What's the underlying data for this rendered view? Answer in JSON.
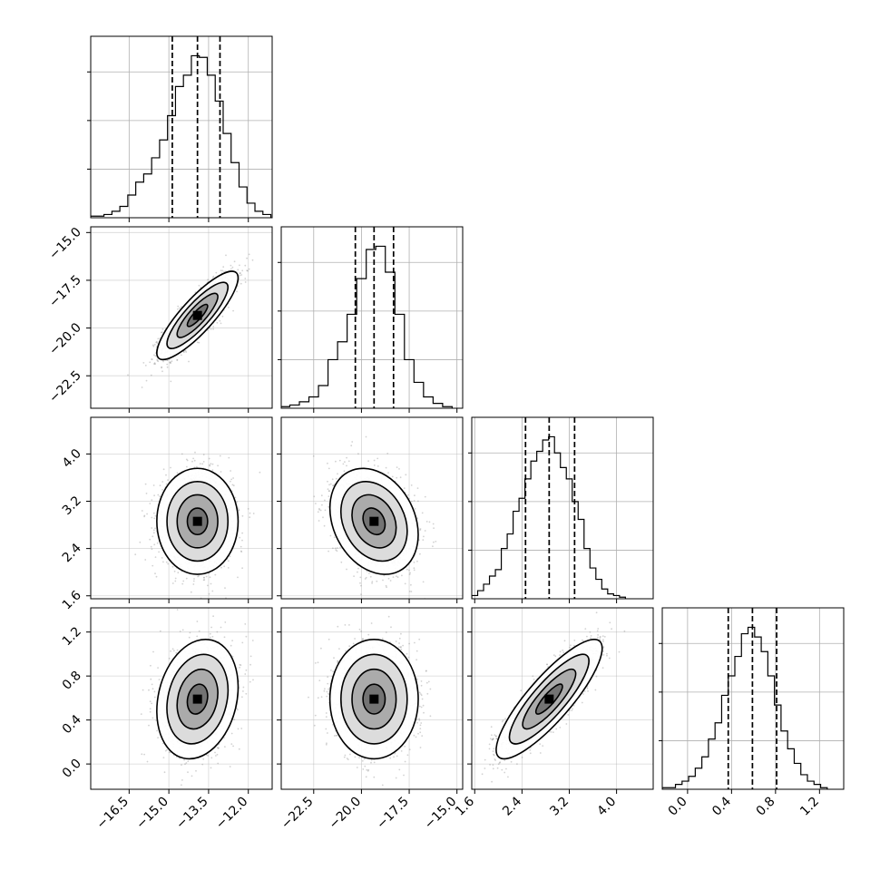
{
  "chart_data": {
    "type": "corner",
    "parameters": [
      {
        "ticks": [
          -16.5,
          -15.0,
          -13.5,
          -12.0
        ],
        "tick_labels": [
          "−16.5",
          "−15.0",
          "−13.5",
          "−12.0"
        ],
        "range": [
          -17.95,
          -11.1
        ],
        "mean": -13.92,
        "sd": 0.65,
        "quantiles": [
          -14.87,
          -13.92,
          -13.07
        ],
        "hist": [
          {
            "x": -17.9,
            "density": 0.01
          },
          {
            "x": -17.6,
            "density": 0.01
          },
          {
            "x": -17.3,
            "density": 0.02
          },
          {
            "x": -17.0,
            "density": 0.04
          },
          {
            "x": -16.7,
            "density": 0.07
          },
          {
            "x": -16.4,
            "density": 0.14
          },
          {
            "x": -16.1,
            "density": 0.22
          },
          {
            "x": -15.8,
            "density": 0.27
          },
          {
            "x": -15.5,
            "density": 0.37
          },
          {
            "x": -15.2,
            "density": 0.48
          },
          {
            "x": -14.9,
            "density": 0.63
          },
          {
            "x": -14.6,
            "density": 0.81
          },
          {
            "x": -14.3,
            "density": 0.88
          },
          {
            "x": -14.0,
            "density": 1.0
          },
          {
            "x": -13.7,
            "density": 0.99
          },
          {
            "x": -13.4,
            "density": 0.88
          },
          {
            "x": -13.1,
            "density": 0.72
          },
          {
            "x": -12.8,
            "density": 0.52
          },
          {
            "x": -12.5,
            "density": 0.34
          },
          {
            "x": -12.2,
            "density": 0.19
          },
          {
            "x": -11.9,
            "density": 0.09
          },
          {
            "x": -11.6,
            "density": 0.04
          },
          {
            "x": -11.3,
            "density": 0.02
          }
        ]
      },
      {
        "ticks": [
          -22.5,
          -20.0,
          -17.5,
          -15.0
        ],
        "tick_labels": [
          "−22.5",
          "−20.0",
          "−17.5",
          "−15.0"
        ],
        "range": [
          -24.2,
          -14.7
        ],
        "mean": -19.34,
        "sd": 0.98,
        "quantiles": [
          -20.32,
          -19.34,
          -18.32
        ],
        "hist": [
          {
            "x": -24.0,
            "density": 0.01
          },
          {
            "x": -23.5,
            "density": 0.02
          },
          {
            "x": -23.0,
            "density": 0.04
          },
          {
            "x": -22.5,
            "density": 0.07
          },
          {
            "x": -22.0,
            "density": 0.14
          },
          {
            "x": -21.5,
            "density": 0.3
          },
          {
            "x": -21.0,
            "density": 0.41
          },
          {
            "x": -20.5,
            "density": 0.58
          },
          {
            "x": -20.0,
            "density": 0.8
          },
          {
            "x": -19.5,
            "density": 0.98
          },
          {
            "x": -19.0,
            "density": 1.0
          },
          {
            "x": -18.5,
            "density": 0.84
          },
          {
            "x": -18.0,
            "density": 0.58
          },
          {
            "x": -17.5,
            "density": 0.3
          },
          {
            "x": -17.0,
            "density": 0.16
          },
          {
            "x": -16.5,
            "density": 0.07
          },
          {
            "x": -16.0,
            "density": 0.03
          },
          {
            "x": -15.5,
            "density": 0.01
          }
        ]
      },
      {
        "ticks": [
          1.6,
          2.4,
          3.2,
          4.0
        ],
        "tick_labels": [
          "1.6",
          "2.4",
          "3.2",
          "4.0"
        ],
        "range": [
          1.55,
          4.62
        ],
        "mean": 2.86,
        "sd": 0.38,
        "quantiles": [
          2.46,
          2.86,
          3.29
        ],
        "hist": [
          {
            "x": 1.6,
            "density": 0.02
          },
          {
            "x": 1.7,
            "density": 0.05
          },
          {
            "x": 1.8,
            "density": 0.09
          },
          {
            "x": 1.9,
            "density": 0.14
          },
          {
            "x": 2.0,
            "density": 0.18
          },
          {
            "x": 2.1,
            "density": 0.31
          },
          {
            "x": 2.2,
            "density": 0.4
          },
          {
            "x": 2.3,
            "density": 0.54
          },
          {
            "x": 2.4,
            "density": 0.62
          },
          {
            "x": 2.5,
            "density": 0.74
          },
          {
            "x": 2.6,
            "density": 0.85
          },
          {
            "x": 2.7,
            "density": 0.91
          },
          {
            "x": 2.8,
            "density": 0.98
          },
          {
            "x": 2.9,
            "density": 1.0
          },
          {
            "x": 3.0,
            "density": 0.9
          },
          {
            "x": 3.1,
            "density": 0.81
          },
          {
            "x": 3.2,
            "density": 0.74
          },
          {
            "x": 3.3,
            "density": 0.6
          },
          {
            "x": 3.4,
            "density": 0.49
          },
          {
            "x": 3.5,
            "density": 0.31
          },
          {
            "x": 3.6,
            "density": 0.19
          },
          {
            "x": 3.7,
            "density": 0.12
          },
          {
            "x": 3.8,
            "density": 0.06
          },
          {
            "x": 3.9,
            "density": 0.03
          },
          {
            "x": 4.0,
            "density": 0.02
          },
          {
            "x": 4.1,
            "density": 0.01
          }
        ]
      },
      {
        "ticks": [
          0.0,
          0.4,
          0.8,
          1.2
        ],
        "tick_labels": [
          "0.0",
          "0.4",
          "0.8",
          "1.2"
        ],
        "range": [
          -0.23,
          1.42
        ],
        "mean": 0.59,
        "sd": 0.23,
        "quantiles": [
          0.37,
          0.59,
          0.81
        ],
        "hist": [
          {
            "x": -0.2,
            "density": 0.01
          },
          {
            "x": -0.14,
            "density": 0.01
          },
          {
            "x": -0.08,
            "density": 0.03
          },
          {
            "x": -0.02,
            "density": 0.05
          },
          {
            "x": 0.04,
            "density": 0.08
          },
          {
            "x": 0.1,
            "density": 0.13
          },
          {
            "x": 0.16,
            "density": 0.2
          },
          {
            "x": 0.22,
            "density": 0.31
          },
          {
            "x": 0.28,
            "density": 0.41
          },
          {
            "x": 0.34,
            "density": 0.58
          },
          {
            "x": 0.4,
            "density": 0.7
          },
          {
            "x": 0.46,
            "density": 0.82
          },
          {
            "x": 0.52,
            "density": 0.96
          },
          {
            "x": 0.58,
            "density": 1.0
          },
          {
            "x": 0.64,
            "density": 0.94
          },
          {
            "x": 0.7,
            "density": 0.85
          },
          {
            "x": 0.76,
            "density": 0.7
          },
          {
            "x": 0.82,
            "density": 0.52
          },
          {
            "x": 0.88,
            "density": 0.36
          },
          {
            "x": 0.94,
            "density": 0.25
          },
          {
            "x": 1.0,
            "density": 0.16
          },
          {
            "x": 1.06,
            "density": 0.09
          },
          {
            "x": 1.12,
            "density": 0.05
          },
          {
            "x": 1.18,
            "density": 0.03
          },
          {
            "x": 1.24,
            "density": 0.01
          }
        ]
      }
    ],
    "correlations": {
      "1-0": 0.85,
      "2-0": 0.0,
      "2-1": -0.25,
      "3-0": 0.2,
      "3-1": 0.0,
      "3-2": 0.85
    },
    "contour_levels_sigma": [
      0.5,
      1.0,
      1.5,
      2.0
    ],
    "grid": true,
    "colors": {
      "ink": "#000000",
      "grid": "#b0b0b0",
      "points": "#7f7f7f",
      "fill": "#ffffff"
    }
  }
}
